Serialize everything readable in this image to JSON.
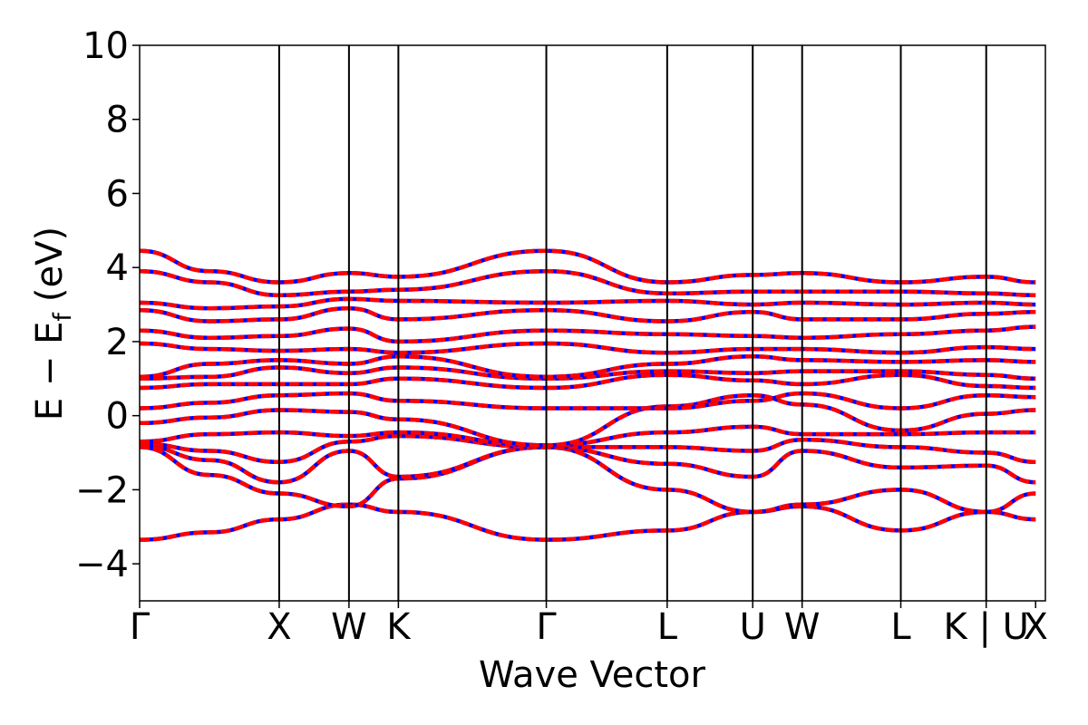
{
  "chart_data": {
    "type": "line",
    "xlabel": "Wave Vector",
    "ylabel": "E − E",
    "ylabel_subscript": "f",
    "ylabel_unit": "(eV)",
    "ylim": [
      -5,
      10
    ],
    "yticks": [
      -4,
      -2,
      0,
      2,
      4,
      6,
      8,
      10
    ],
    "xlim": [
      0,
      6.49
    ],
    "kpoints": [
      {
        "label": "Γ",
        "x": 0.0
      },
      {
        "label": "X",
        "x": 1.0
      },
      {
        "label": "W",
        "x": 1.5
      },
      {
        "label": "K",
        "x": 1.854
      },
      {
        "label": "Γ",
        "x": 2.914
      },
      {
        "label": "L",
        "x": 3.78
      },
      {
        "label": "U",
        "x": 4.393
      },
      {
        "label": "W",
        "x": 4.747
      },
      {
        "label": "L",
        "x": 5.454
      },
      {
        "label": "K | U",
        "x": 6.066
      },
      {
        "label": "X",
        "x": 6.42
      }
    ],
    "grid": false,
    "legend": "none",
    "colors": {
      "spin_down": "#0000ff",
      "spin_up": "#ff0000",
      "axes": "#000000"
    },
    "series": [
      {
        "values": [
          [
            0,
            -3.35
          ],
          [
            0.5,
            -3.15
          ],
          [
            1.0,
            -2.8
          ],
          [
            1.5,
            -2.4
          ],
          [
            1.854,
            -2.6
          ],
          [
            2.914,
            -3.35
          ],
          [
            3.78,
            -3.1
          ],
          [
            4.393,
            -2.6
          ],
          [
            4.747,
            -2.45
          ],
          [
            5.454,
            -3.1
          ],
          [
            6.066,
            -2.6
          ],
          [
            6.42,
            -2.8
          ]
        ]
      },
      {
        "values": [
          [
            0,
            -0.85
          ],
          [
            0.5,
            -1.6
          ],
          [
            1.0,
            -2.1
          ],
          [
            1.5,
            -2.45
          ],
          [
            1.854,
            -1.7
          ],
          [
            2.914,
            -0.85
          ],
          [
            3.78,
            -2.0
          ],
          [
            4.393,
            -2.6
          ],
          [
            4.747,
            -2.4
          ],
          [
            5.454,
            -2.0
          ],
          [
            6.066,
            -2.6
          ],
          [
            6.42,
            -2.1
          ]
        ]
      },
      {
        "values": [
          [
            0,
            -0.8
          ],
          [
            0.5,
            -1.2
          ],
          [
            1.0,
            -1.8
          ],
          [
            1.5,
            -0.95
          ],
          [
            1.854,
            -1.65
          ],
          [
            2.914,
            -0.85
          ],
          [
            3.78,
            -1.3
          ],
          [
            4.393,
            -1.65
          ],
          [
            4.747,
            -0.95
          ],
          [
            5.454,
            -1.4
          ],
          [
            6.066,
            -1.35
          ],
          [
            6.42,
            -1.8
          ]
        ]
      },
      {
        "values": [
          [
            0,
            -0.75
          ],
          [
            0.5,
            -0.95
          ],
          [
            1.0,
            -1.25
          ],
          [
            1.5,
            -0.7
          ],
          [
            1.854,
            -0.55
          ],
          [
            2.914,
            -0.85
          ],
          [
            3.78,
            -0.85
          ],
          [
            4.393,
            -0.95
          ],
          [
            4.747,
            -0.65
          ],
          [
            5.454,
            -0.85
          ],
          [
            6.066,
            -1.0
          ],
          [
            6.42,
            -1.25
          ]
        ]
      },
      {
        "values": [
          [
            0,
            -0.7
          ],
          [
            0.5,
            -0.5
          ],
          [
            1.0,
            -0.45
          ],
          [
            1.5,
            -0.55
          ],
          [
            1.854,
            -0.45
          ],
          [
            2.914,
            -0.8
          ],
          [
            3.78,
            -0.45
          ],
          [
            4.393,
            -0.3
          ],
          [
            4.747,
            -0.5
          ],
          [
            5.454,
            -0.5
          ],
          [
            6.066,
            -0.45
          ],
          [
            6.42,
            -0.45
          ]
        ]
      },
      {
        "values": [
          [
            0,
            -0.2
          ],
          [
            0.5,
            -0.05
          ],
          [
            1.0,
            0.15
          ],
          [
            1.5,
            0.1
          ],
          [
            1.854,
            -0.1
          ],
          [
            2.914,
            -0.8
          ],
          [
            3.78,
            0.25
          ],
          [
            4.393,
            0.55
          ],
          [
            4.747,
            0.3
          ],
          [
            5.454,
            -0.4
          ],
          [
            6.066,
            0.05
          ],
          [
            6.42,
            0.15
          ]
        ]
      },
      {
        "values": [
          [
            0,
            0.2
          ],
          [
            0.5,
            0.35
          ],
          [
            1.0,
            0.55
          ],
          [
            1.5,
            0.6
          ],
          [
            1.854,
            0.4
          ],
          [
            2.914,
            0.2
          ],
          [
            3.78,
            0.2
          ],
          [
            4.393,
            0.4
          ],
          [
            4.747,
            0.6
          ],
          [
            5.454,
            0.2
          ],
          [
            6.066,
            0.55
          ],
          [
            6.42,
            0.5
          ]
        ]
      },
      {
        "values": [
          [
            0,
            0.75
          ],
          [
            0.5,
            0.85
          ],
          [
            1.0,
            0.85
          ],
          [
            1.5,
            0.85
          ],
          [
            1.854,
            1.0
          ],
          [
            2.914,
            0.75
          ],
          [
            3.78,
            1.1
          ],
          [
            4.393,
            0.95
          ],
          [
            4.747,
            0.85
          ],
          [
            5.454,
            1.1
          ],
          [
            6.066,
            0.8
          ],
          [
            6.42,
            0.75
          ]
        ]
      },
      {
        "values": [
          [
            0,
            1.0
          ],
          [
            0.5,
            1.05
          ],
          [
            1.0,
            1.3
          ],
          [
            1.5,
            1.15
          ],
          [
            1.854,
            1.3
          ],
          [
            2.914,
            1.0
          ],
          [
            3.78,
            1.2
          ],
          [
            4.393,
            1.15
          ],
          [
            4.747,
            1.2
          ],
          [
            5.454,
            1.2
          ],
          [
            6.066,
            1.1
          ],
          [
            6.42,
            1.0
          ]
        ]
      },
      {
        "values": [
          [
            0,
            1.05
          ],
          [
            0.5,
            1.4
          ],
          [
            1.0,
            1.5
          ],
          [
            1.5,
            1.4
          ],
          [
            1.854,
            1.6
          ],
          [
            2.914,
            1.05
          ],
          [
            3.78,
            1.4
          ],
          [
            4.393,
            1.6
          ],
          [
            4.747,
            1.5
          ],
          [
            5.454,
            1.45
          ],
          [
            6.066,
            1.5
          ],
          [
            6.42,
            1.45
          ]
        ]
      },
      {
        "values": [
          [
            0,
            1.95
          ],
          [
            0.5,
            1.8
          ],
          [
            1.0,
            1.75
          ],
          [
            1.5,
            1.8
          ],
          [
            1.854,
            1.7
          ],
          [
            2.914,
            1.95
          ],
          [
            3.78,
            1.7
          ],
          [
            4.393,
            1.8
          ],
          [
            4.747,
            1.8
          ],
          [
            5.454,
            1.7
          ],
          [
            6.066,
            1.85
          ],
          [
            6.42,
            1.8
          ]
        ]
      },
      {
        "values": [
          [
            0,
            2.3
          ],
          [
            0.5,
            2.1
          ],
          [
            1.0,
            2.15
          ],
          [
            1.5,
            2.35
          ],
          [
            1.854,
            2.0
          ],
          [
            2.914,
            2.3
          ],
          [
            3.78,
            2.2
          ],
          [
            4.393,
            2.15
          ],
          [
            4.747,
            2.1
          ],
          [
            5.454,
            2.2
          ],
          [
            6.066,
            2.3
          ],
          [
            6.42,
            2.4
          ]
        ]
      },
      {
        "values": [
          [
            0,
            2.85
          ],
          [
            0.5,
            2.55
          ],
          [
            1.0,
            2.6
          ],
          [
            1.5,
            2.9
          ],
          [
            1.854,
            2.6
          ],
          [
            2.914,
            2.85
          ],
          [
            3.78,
            2.55
          ],
          [
            4.393,
            2.8
          ],
          [
            4.747,
            2.6
          ],
          [
            5.454,
            2.6
          ],
          [
            6.066,
            2.75
          ],
          [
            6.42,
            2.8
          ]
        ]
      },
      {
        "values": [
          [
            0,
            3.05
          ],
          [
            0.5,
            2.9
          ],
          [
            1.0,
            2.95
          ],
          [
            1.5,
            3.15
          ],
          [
            1.854,
            3.1
          ],
          [
            2.914,
            3.05
          ],
          [
            3.78,
            3.1
          ],
          [
            4.393,
            3.0
          ],
          [
            4.747,
            3.05
          ],
          [
            5.454,
            3.0
          ],
          [
            6.066,
            3.05
          ],
          [
            6.42,
            3.0
          ]
        ]
      },
      {
        "values": [
          [
            0,
            3.9
          ],
          [
            0.5,
            3.6
          ],
          [
            1.0,
            3.25
          ],
          [
            1.5,
            3.35
          ],
          [
            1.854,
            3.4
          ],
          [
            2.914,
            3.9
          ],
          [
            3.78,
            3.3
          ],
          [
            4.393,
            3.35
          ],
          [
            4.747,
            3.35
          ],
          [
            5.454,
            3.35
          ],
          [
            6.066,
            3.3
          ],
          [
            6.42,
            3.25
          ]
        ]
      },
      {
        "values": [
          [
            0,
            4.45
          ],
          [
            0.5,
            3.9
          ],
          [
            1.0,
            3.6
          ],
          [
            1.5,
            3.85
          ],
          [
            1.854,
            3.75
          ],
          [
            2.914,
            4.45
          ],
          [
            3.78,
            3.6
          ],
          [
            4.393,
            3.8
          ],
          [
            4.747,
            3.85
          ],
          [
            5.454,
            3.6
          ],
          [
            6.066,
            3.75
          ],
          [
            6.42,
            3.6
          ]
        ]
      }
    ]
  }
}
